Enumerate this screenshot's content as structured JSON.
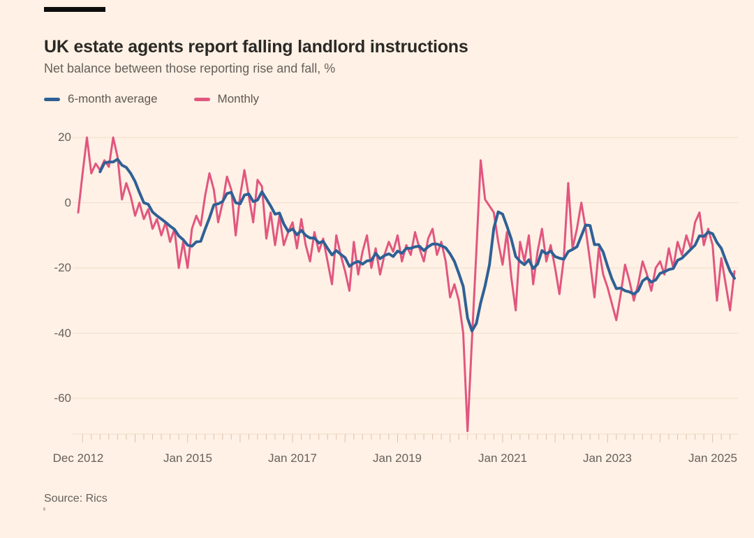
{
  "header": {
    "title": "UK estate agents report falling landlord instructions",
    "subtitle": "Net balance between those reporting rise and fall, %"
  },
  "legend": {
    "avg": {
      "label": "6-month average",
      "color": "#2f6095"
    },
    "monthly": {
      "label": "Monthly",
      "color": "#e1567f"
    }
  },
  "footer": {
    "source": "Source: Rics"
  },
  "colors": {
    "background": "#fff1e5",
    "title_text": "#2b2926",
    "secondary_text": "#66605c",
    "gridline": "#f0ddcb",
    "tick": "#dcc2ac",
    "accent_bar": "#0d0d0d",
    "avg_line": "#2f6095",
    "monthly_line": "#e1567f"
  },
  "chart_data": {
    "type": "line",
    "title": "UK estate agents report falling landlord instructions",
    "subtitle": "Net balance between those reporting rise and fall, %",
    "unit": "%",
    "x_start": "Dec 2012",
    "x_end": "Jun 2025",
    "x_frequency": "monthly",
    "ylim": [
      -72,
      22
    ],
    "y_ticks": [
      20,
      0,
      -20,
      -40,
      -60
    ],
    "grid": "horizontal",
    "legend_position": "top-left",
    "x_tick_labels": [
      {
        "label": "Dec 2012",
        "month": 0
      },
      {
        "label": "Jan 2015",
        "month": 25
      },
      {
        "label": "Jan 2017",
        "month": 49
      },
      {
        "label": "Jan 2019",
        "month": 73
      },
      {
        "label": "Jan 2021",
        "month": 97
      },
      {
        "label": "Jan 2023",
        "month": 121
      },
      {
        "label": "Jan 2025",
        "month": 145
      }
    ],
    "series": [
      {
        "name": "Monthly",
        "color": "#e1567f",
        "values": [
          -3,
          9,
          20,
          9,
          12,
          10,
          13,
          11,
          20,
          14,
          1,
          6,
          2,
          -4,
          0,
          -5,
          -2,
          -8,
          -5,
          -10,
          -6,
          -12,
          -8,
          -20,
          -12,
          -20,
          -8,
          -4,
          -7,
          2,
          9,
          4,
          -6,
          0,
          8,
          4,
          -10,
          2,
          10,
          2,
          -6,
          7,
          5,
          -11,
          -3,
          -13,
          -4,
          -13,
          -9,
          -6,
          -14,
          -5,
          -13,
          -18,
          -9,
          -15,
          -11,
          -18,
          -25,
          -10,
          -16,
          -21,
          -27,
          -12,
          -22,
          -15,
          -10,
          -20,
          -14,
          -22,
          -16,
          -12,
          -15,
          -10,
          -18,
          -13,
          -16,
          -9,
          -14,
          -18,
          -11,
          -8,
          -16,
          -12,
          -18,
          -29,
          -25,
          -30,
          -40,
          -70,
          -42,
          -15,
          13,
          1,
          -1,
          -3,
          -12,
          -19,
          -9,
          -23,
          -33,
          -12,
          -18,
          -10,
          -25,
          -15,
          -8,
          -18,
          -13,
          -20,
          -28,
          -17,
          6,
          -14,
          -8,
          0,
          -8,
          -18,
          -29,
          -14,
          -22,
          -26,
          -31,
          -36,
          -28,
          -19,
          -24,
          -30,
          -25,
          -18,
          -22,
          -27,
          -20,
          -18,
          -22,
          -14,
          -20,
          -12,
          -16,
          -10,
          -14,
          -6,
          -3,
          -13,
          -8,
          -13,
          -30,
          -17,
          -25,
          -33,
          -21
        ]
      },
      {
        "name": "6-month average",
        "color": "#2f6095",
        "derived": "trailing 6-month mean of the Monthly series, starts at the 6th month"
      }
    ]
  }
}
